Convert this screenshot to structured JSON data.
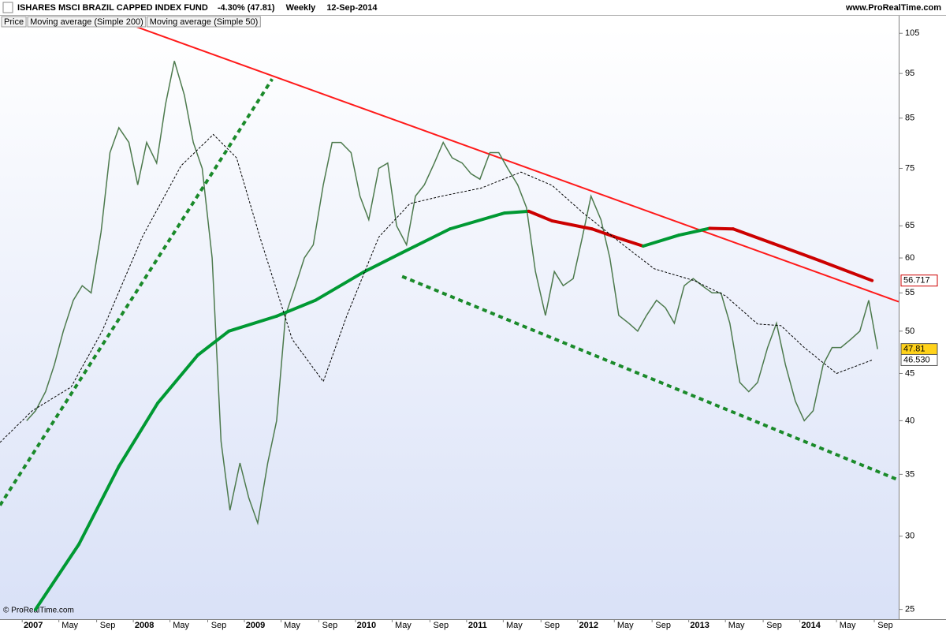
{
  "chart_data": {
    "type": "line",
    "title": "ISHARES MSCI BRAZIL CAPPED INDEX FUND",
    "change": "-4.30% (47.81)",
    "interval": "Weekly",
    "date": "12-Sep-2014",
    "site": "www.ProRealTime.com",
    "copyright": "© ProRealTime.com",
    "log_scale": true,
    "xlim": [
      2006.8,
      2014.89
    ],
    "ylim": [
      24.4,
      106.5
    ],
    "yticks": [
      25,
      30,
      35,
      40,
      45,
      50,
      55,
      60,
      65,
      75,
      85,
      95,
      105
    ],
    "xticks": [
      2007,
      {
        "value": 2007.33,
        "label": "May"
      },
      {
        "value": 2007.67,
        "label": "Sep"
      },
      2008,
      {
        "value": 2008.33,
        "label": "May"
      },
      {
        "value": 2008.67,
        "label": "Sep"
      },
      2009,
      {
        "value": 2009.33,
        "label": "May"
      },
      {
        "value": 2009.67,
        "label": "Sep"
      },
      2010,
      {
        "value": 2010.33,
        "label": "May"
      },
      {
        "value": 2010.67,
        "label": "Sep"
      },
      2011,
      {
        "value": 2011.33,
        "label": "May"
      },
      {
        "value": 2011.67,
        "label": "Sep"
      },
      2012,
      {
        "value": 2012.33,
        "label": "May"
      },
      {
        "value": 2012.67,
        "label": "Sep"
      },
      2013,
      {
        "value": 2013.33,
        "label": "May"
      },
      {
        "value": 2013.67,
        "label": "Sep"
      },
      2014,
      {
        "value": 2014.33,
        "label": "May"
      },
      {
        "value": 2014.67,
        "label": "Sep"
      }
    ],
    "series": [
      {
        "name": "Price",
        "color": "#4d7a4d",
        "x": [
          2007.04,
          2007.12,
          2007.21,
          2007.29,
          2007.37,
          2007.46,
          2007.54,
          2007.62,
          2007.71,
          2007.79,
          2007.87,
          2007.96,
          2008.04,
          2008.12,
          2008.21,
          2008.29,
          2008.37,
          2008.46,
          2008.54,
          2008.62,
          2008.71,
          2008.79,
          2008.87,
          2008.96,
          2009.04,
          2009.12,
          2009.21,
          2009.29,
          2009.37,
          2009.46,
          2009.54,
          2009.62,
          2009.71,
          2009.79,
          2009.87,
          2009.96,
          2010.04,
          2010.12,
          2010.21,
          2010.29,
          2010.37,
          2010.46,
          2010.54,
          2010.62,
          2010.71,
          2010.79,
          2010.87,
          2010.96,
          2011.04,
          2011.12,
          2011.21,
          2011.29,
          2011.37,
          2011.46,
          2011.54,
          2011.62,
          2011.71,
          2011.79,
          2011.87,
          2011.96,
          2012.04,
          2012.12,
          2012.21,
          2012.29,
          2012.37,
          2012.46,
          2012.54,
          2012.62,
          2012.71,
          2012.79,
          2012.87,
          2012.96,
          2013.04,
          2013.12,
          2013.21,
          2013.29,
          2013.37,
          2013.46,
          2013.54,
          2013.62,
          2013.71,
          2013.79,
          2013.87,
          2013.96,
          2014.04,
          2014.12,
          2014.21,
          2014.29,
          2014.37,
          2014.46,
          2014.54,
          2014.62,
          2014.7
        ],
        "values": [
          40,
          41,
          43,
          46,
          50,
          54,
          56,
          55,
          64,
          78,
          83,
          80,
          72,
          80,
          76,
          88,
          98,
          90,
          80,
          75,
          60,
          38,
          32,
          36,
          33,
          31,
          36,
          40,
          52,
          56,
          60,
          62,
          72,
          80,
          80,
          78,
          70,
          66,
          75,
          76,
          65,
          62,
          70,
          72,
          76,
          80,
          77,
          76,
          74,
          73,
          78,
          78,
          75,
          72,
          68,
          58,
          52,
          58,
          56,
          57,
          63,
          70,
          66,
          60,
          52,
          51,
          50,
          52,
          54,
          53,
          51,
          56,
          57,
          56,
          55,
          55,
          51,
          44,
          43,
          44,
          48,
          51,
          46,
          42,
          40,
          41,
          46,
          48,
          48,
          49,
          50,
          54,
          47.81
        ],
        "last_label": {
          "value": 47.81,
          "label": "47.81"
        }
      },
      {
        "name": "Moving average (Simple 200)",
        "color": "#cc0000",
        "rising_color": "#009933",
        "x": [
          2007.12,
          2007.51,
          2007.87,
          2008.22,
          2008.58,
          2008.86,
          2009.29,
          2009.64,
          2010.07,
          2010.42,
          2010.85,
          2011.34,
          2011.56,
          2011.77,
          2012.13,
          2012.34,
          2012.59,
          2012.91,
          2013.19,
          2013.4,
          2013.76,
          2014.18,
          2014.65
        ],
        "values": [
          25.0,
          29.4,
          35.7,
          41.8,
          47.1,
          50.0,
          51.9,
          54.0,
          57.9,
          60.8,
          64.5,
          67.1,
          67.4,
          65.8,
          64.5,
          63.2,
          61.8,
          63.5,
          64.6,
          64.5,
          62.2,
          59.6,
          56.717
        ],
        "last_label": {
          "value": 56.717,
          "label": "56.717"
        }
      },
      {
        "name": "Moving average (Simple 50)",
        "color": "#000000",
        "dashed": true,
        "x": [
          2006.8,
          2007.09,
          2007.44,
          2007.72,
          2008.08,
          2008.43,
          2008.72,
          2008.93,
          2009.14,
          2009.43,
          2009.71,
          2009.92,
          2010.21,
          2010.49,
          2010.78,
          2011.13,
          2011.49,
          2011.77,
          2012.05,
          2012.41,
          2012.69,
          2013.05,
          2013.33,
          2013.62,
          2013.83,
          2014.04,
          2014.33,
          2014.65
        ],
        "values": [
          37.9,
          41.0,
          43.5,
          50.0,
          63.2,
          75.5,
          81.6,
          77.0,
          63.2,
          49.0,
          44.1,
          51.9,
          63.2,
          68.7,
          70.0,
          71.4,
          74.3,
          71.9,
          67.1,
          62.0,
          58.4,
          56.7,
          54.6,
          50.9,
          50.7,
          48.0,
          45.0,
          46.53
        ],
        "last_label": {
          "value": 46.53,
          "label": "46.530"
        }
      }
    ],
    "trendlines": [
      {
        "color": "#ff1a1a",
        "dashed": false,
        "x": [
          2008.01,
          2014.89
        ],
        "values": [
          106.9,
          53.8
        ]
      },
      {
        "color": "#1a8a2a",
        "dashed": true,
        "x": [
          2006.8,
          2009.25
        ],
        "values": [
          32.4,
          93.7
        ]
      },
      {
        "color": "#1a8a2a",
        "dashed": true,
        "x": [
          2010.42,
          2014.89
        ],
        "values": [
          57.3,
          34.5
        ]
      }
    ]
  }
}
